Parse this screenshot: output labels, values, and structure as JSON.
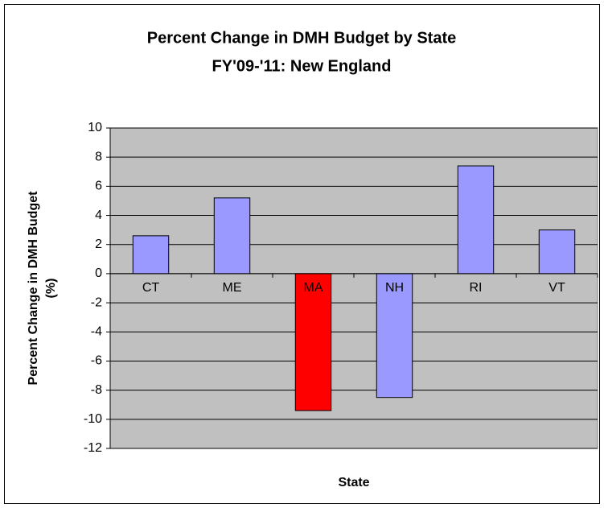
{
  "chart_data": {
    "type": "bar",
    "title": [
      "Percent Change in DMH Budget by State",
      "FY'09-'11: New England"
    ],
    "y_label": [
      "Percent Change in DMH Budget",
      "(%)"
    ],
    "x_label": "State",
    "categories": [
      "CT",
      "ME",
      "MA",
      "NH",
      "RI",
      "VT"
    ],
    "values": [
      2.6,
      5.2,
      -9.4,
      -8.5,
      7.4,
      3.0
    ],
    "colors": [
      "#9999ff",
      "#9999ff",
      "#ff0000",
      "#9999ff",
      "#9999ff",
      "#9999ff"
    ],
    "ylim": [
      -12,
      10
    ],
    "yticks": [
      -12,
      -10,
      -8,
      -6,
      -4,
      -2,
      0,
      2,
      4,
      6,
      8,
      10
    ],
    "grid": true
  }
}
